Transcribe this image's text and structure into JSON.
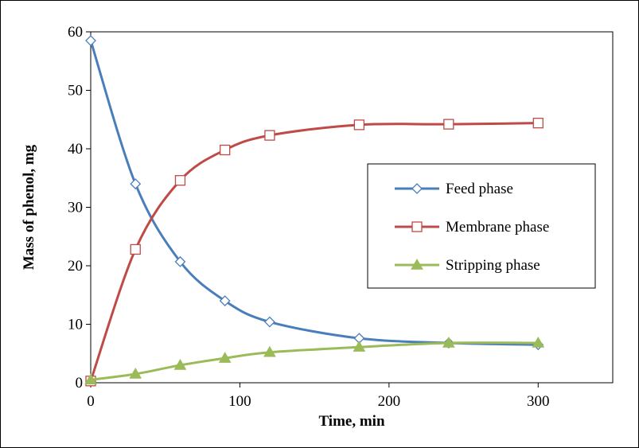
{
  "chart_data": {
    "type": "line",
    "xlabel": "Time, min",
    "ylabel": "Mass of phenol, mg",
    "xlim": [
      0,
      350
    ],
    "ylim": [
      0,
      60
    ],
    "xticks": [
      0,
      100,
      200,
      300
    ],
    "yticks": [
      0,
      10,
      20,
      30,
      40,
      50,
      60
    ],
    "grid": false,
    "smooth": true,
    "legend_position": "right",
    "series": [
      {
        "name": "Feed phase",
        "color": "#4a7ebb",
        "marker": "diamond-open",
        "points": [
          [
            0,
            58.5
          ],
          [
            30,
            34.0
          ],
          [
            60,
            20.7
          ],
          [
            90,
            14.0
          ],
          [
            120,
            10.4
          ],
          [
            180,
            7.6
          ],
          [
            240,
            6.8
          ],
          [
            300,
            6.5
          ]
        ]
      },
      {
        "name": "Membrane phase",
        "color": "#be4b48",
        "marker": "square-open",
        "points": [
          [
            0,
            0.3
          ],
          [
            30,
            22.8
          ],
          [
            60,
            34.6
          ],
          [
            90,
            39.8
          ],
          [
            120,
            42.3
          ],
          [
            180,
            44.1
          ],
          [
            240,
            44.2
          ],
          [
            300,
            44.4
          ]
        ]
      },
      {
        "name": "Stripping phase",
        "color": "#9bbb59",
        "marker": "triangle-filled",
        "points": [
          [
            0,
            0.5
          ],
          [
            30,
            1.5
          ],
          [
            60,
            3.0
          ],
          [
            90,
            4.2
          ],
          [
            120,
            5.2
          ],
          [
            180,
            6.1
          ],
          [
            240,
            6.8
          ],
          [
            300,
            6.8
          ]
        ]
      }
    ]
  }
}
